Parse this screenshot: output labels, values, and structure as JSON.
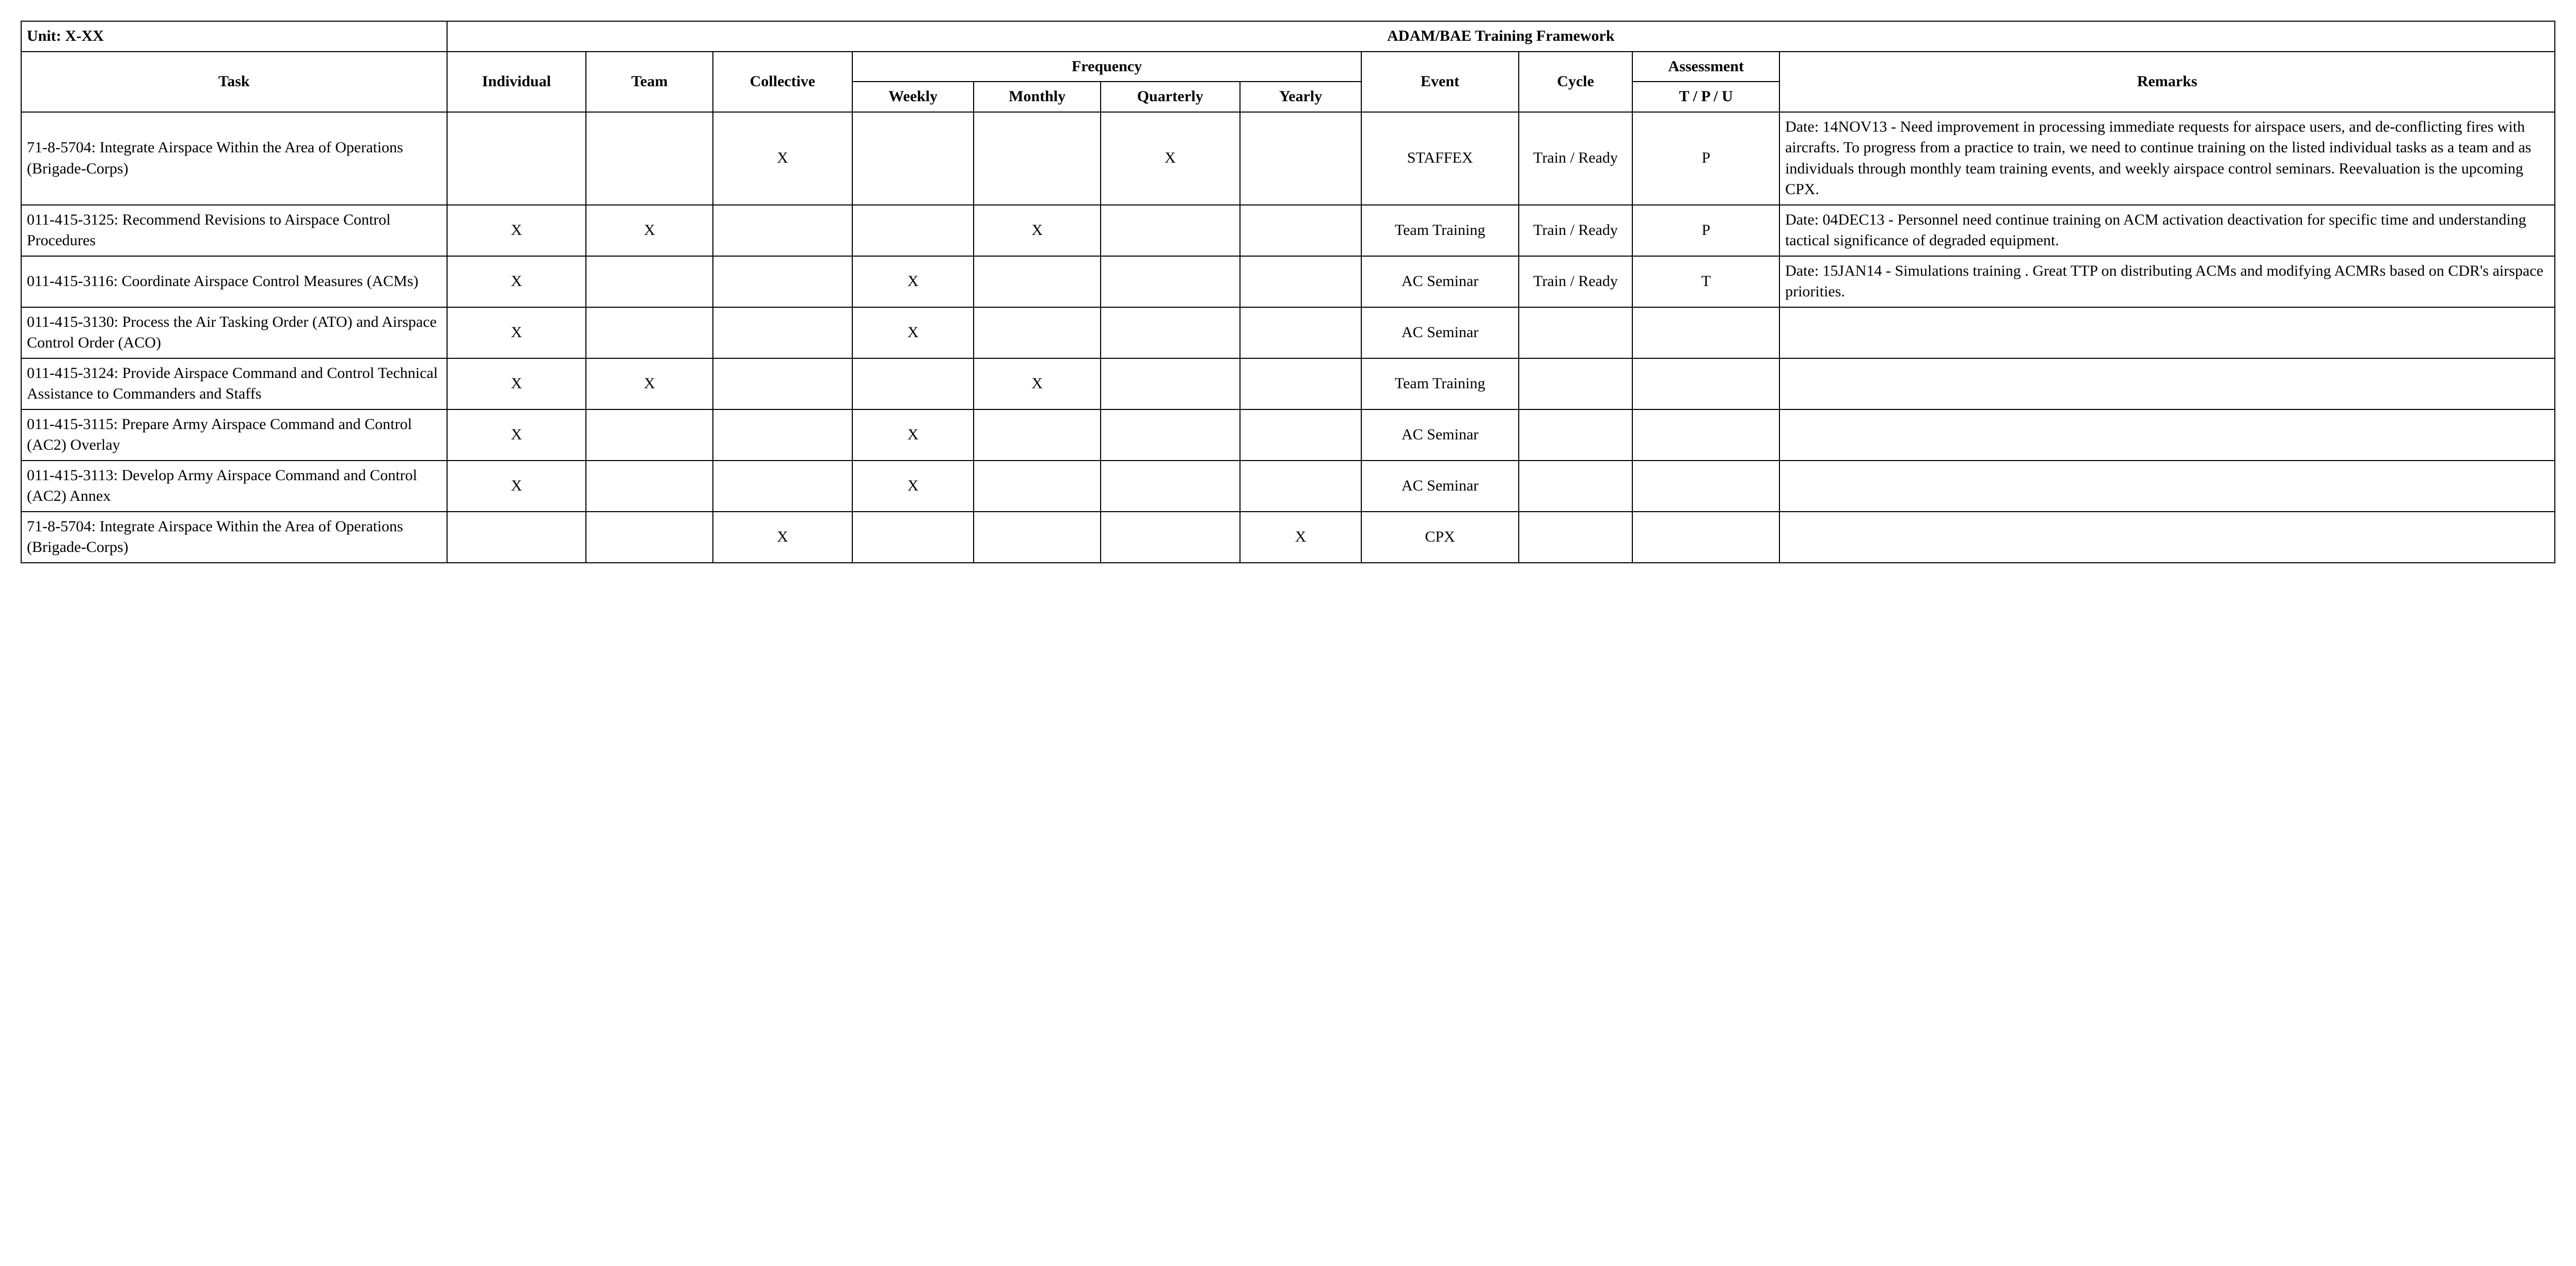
{
  "table": {
    "type": "table",
    "background_color": "#ffffff",
    "border_color": "#000000",
    "text_color": "#000000",
    "font_family": "Palatino Linotype, Book Antiqua, Palatino, Georgia, serif",
    "body_fontsize_pt": 22,
    "header_fontsize_pt": 22,
    "header": {
      "unit_label": "Unit: X-XX",
      "title": "ADAM/BAE Training Framework",
      "task": "Task",
      "individual": "Individual",
      "team": "Team",
      "collective": "Collective",
      "frequency": "Frequency",
      "weekly": "Weekly",
      "monthly": "Monthly",
      "quarterly": "Quarterly",
      "yearly": "Yearly",
      "event": "Event",
      "cycle": "Cycle",
      "assessment": "Assessment",
      "assessment_sub": "T / P / U",
      "remarks": "Remarks"
    },
    "mark_glyph": "X",
    "columns": [
      "task",
      "individual",
      "team",
      "collective",
      "weekly",
      "monthly",
      "quarterly",
      "yearly",
      "event",
      "cycle",
      "assessment",
      "remarks"
    ],
    "rows": [
      {
        "task": "71-8-5704: Integrate Airspace Within the Area of Operations (Brigade-Corps)",
        "individual": "",
        "team": "",
        "collective": "X",
        "weekly": "",
        "monthly": "",
        "quarterly": "X",
        "yearly": "",
        "event": "STAFFEX",
        "cycle": "Train / Ready",
        "assessment": "P",
        "remarks": "Date: 14NOV13 - Need improvement in processing immediate requests for airspace users, and de-conflicting fires with aircrafts. To progress from  a practice to train, we need to continue training on the listed individual tasks as a team and as individuals through monthly team training events, and weekly airspace control seminars.  Reevaluation is the upcoming CPX."
      },
      {
        "task": "011-415-3125: Recommend Revisions to Airspace Control Procedures",
        "individual": "X",
        "team": "X",
        "collective": "",
        "weekly": "",
        "monthly": "X",
        "quarterly": "",
        "yearly": "",
        "event": "Team Training",
        "cycle": "Train / Ready",
        "assessment": "P",
        "remarks": "Date: 04DEC13 - Personnel need continue training on ACM activation deactivation for specific time and understanding tactical significance of degraded equipment."
      },
      {
        "task": "011-415-3116: Coordinate Airspace Control Measures (ACMs)",
        "individual": "X",
        "team": "",
        "collective": "",
        "weekly": "X",
        "monthly": "",
        "quarterly": "",
        "yearly": "",
        "event": "AC Seminar",
        "cycle": "Train / Ready",
        "assessment": "T",
        "remarks": "Date: 15JAN14 - Simulations training .  Great TTP on distributing ACMs and modifying ACMRs based on CDR's airspace priorities."
      },
      {
        "task": "011-415-3130: Process the Air Tasking Order (ATO) and Airspace Control Order (ACO)",
        "individual": "X",
        "team": "",
        "collective": "",
        "weekly": "X",
        "monthly": "",
        "quarterly": "",
        "yearly": "",
        "event": "AC Seminar",
        "cycle": "",
        "assessment": "",
        "remarks": ""
      },
      {
        "task": "011-415-3124: Provide Airspace Command and Control Technical Assistance to Commanders and Staffs",
        "individual": "X",
        "team": "X",
        "collective": "",
        "weekly": "",
        "monthly": "X",
        "quarterly": "",
        "yearly": "",
        "event": "Team Training",
        "cycle": "",
        "assessment": "",
        "remarks": ""
      },
      {
        "task": "011-415-3115: Prepare Army Airspace Command and Control (AC2) Overlay",
        "individual": "X",
        "team": "",
        "collective": "",
        "weekly": "X",
        "monthly": "",
        "quarterly": "",
        "yearly": "",
        "event": "AC Seminar",
        "cycle": "",
        "assessment": "",
        "remarks": ""
      },
      {
        "task": "011-415-3113: Develop Army Airspace Command and Control (AC2) Annex",
        "individual": "X",
        "team": "",
        "collective": "",
        "weekly": "X",
        "monthly": "",
        "quarterly": "",
        "yearly": "",
        "event": "AC Seminar",
        "cycle": "",
        "assessment": "",
        "remarks": ""
      },
      {
        "task": "71-8-5704: Integrate Airspace Within the Area of Operations (Brigade-Corps)",
        "individual": "",
        "team": "",
        "collective": "X",
        "weekly": "",
        "monthly": "",
        "quarterly": "",
        "yearly": "X",
        "event": "CPX",
        "cycle": "",
        "assessment": "",
        "remarks": ""
      }
    ]
  }
}
